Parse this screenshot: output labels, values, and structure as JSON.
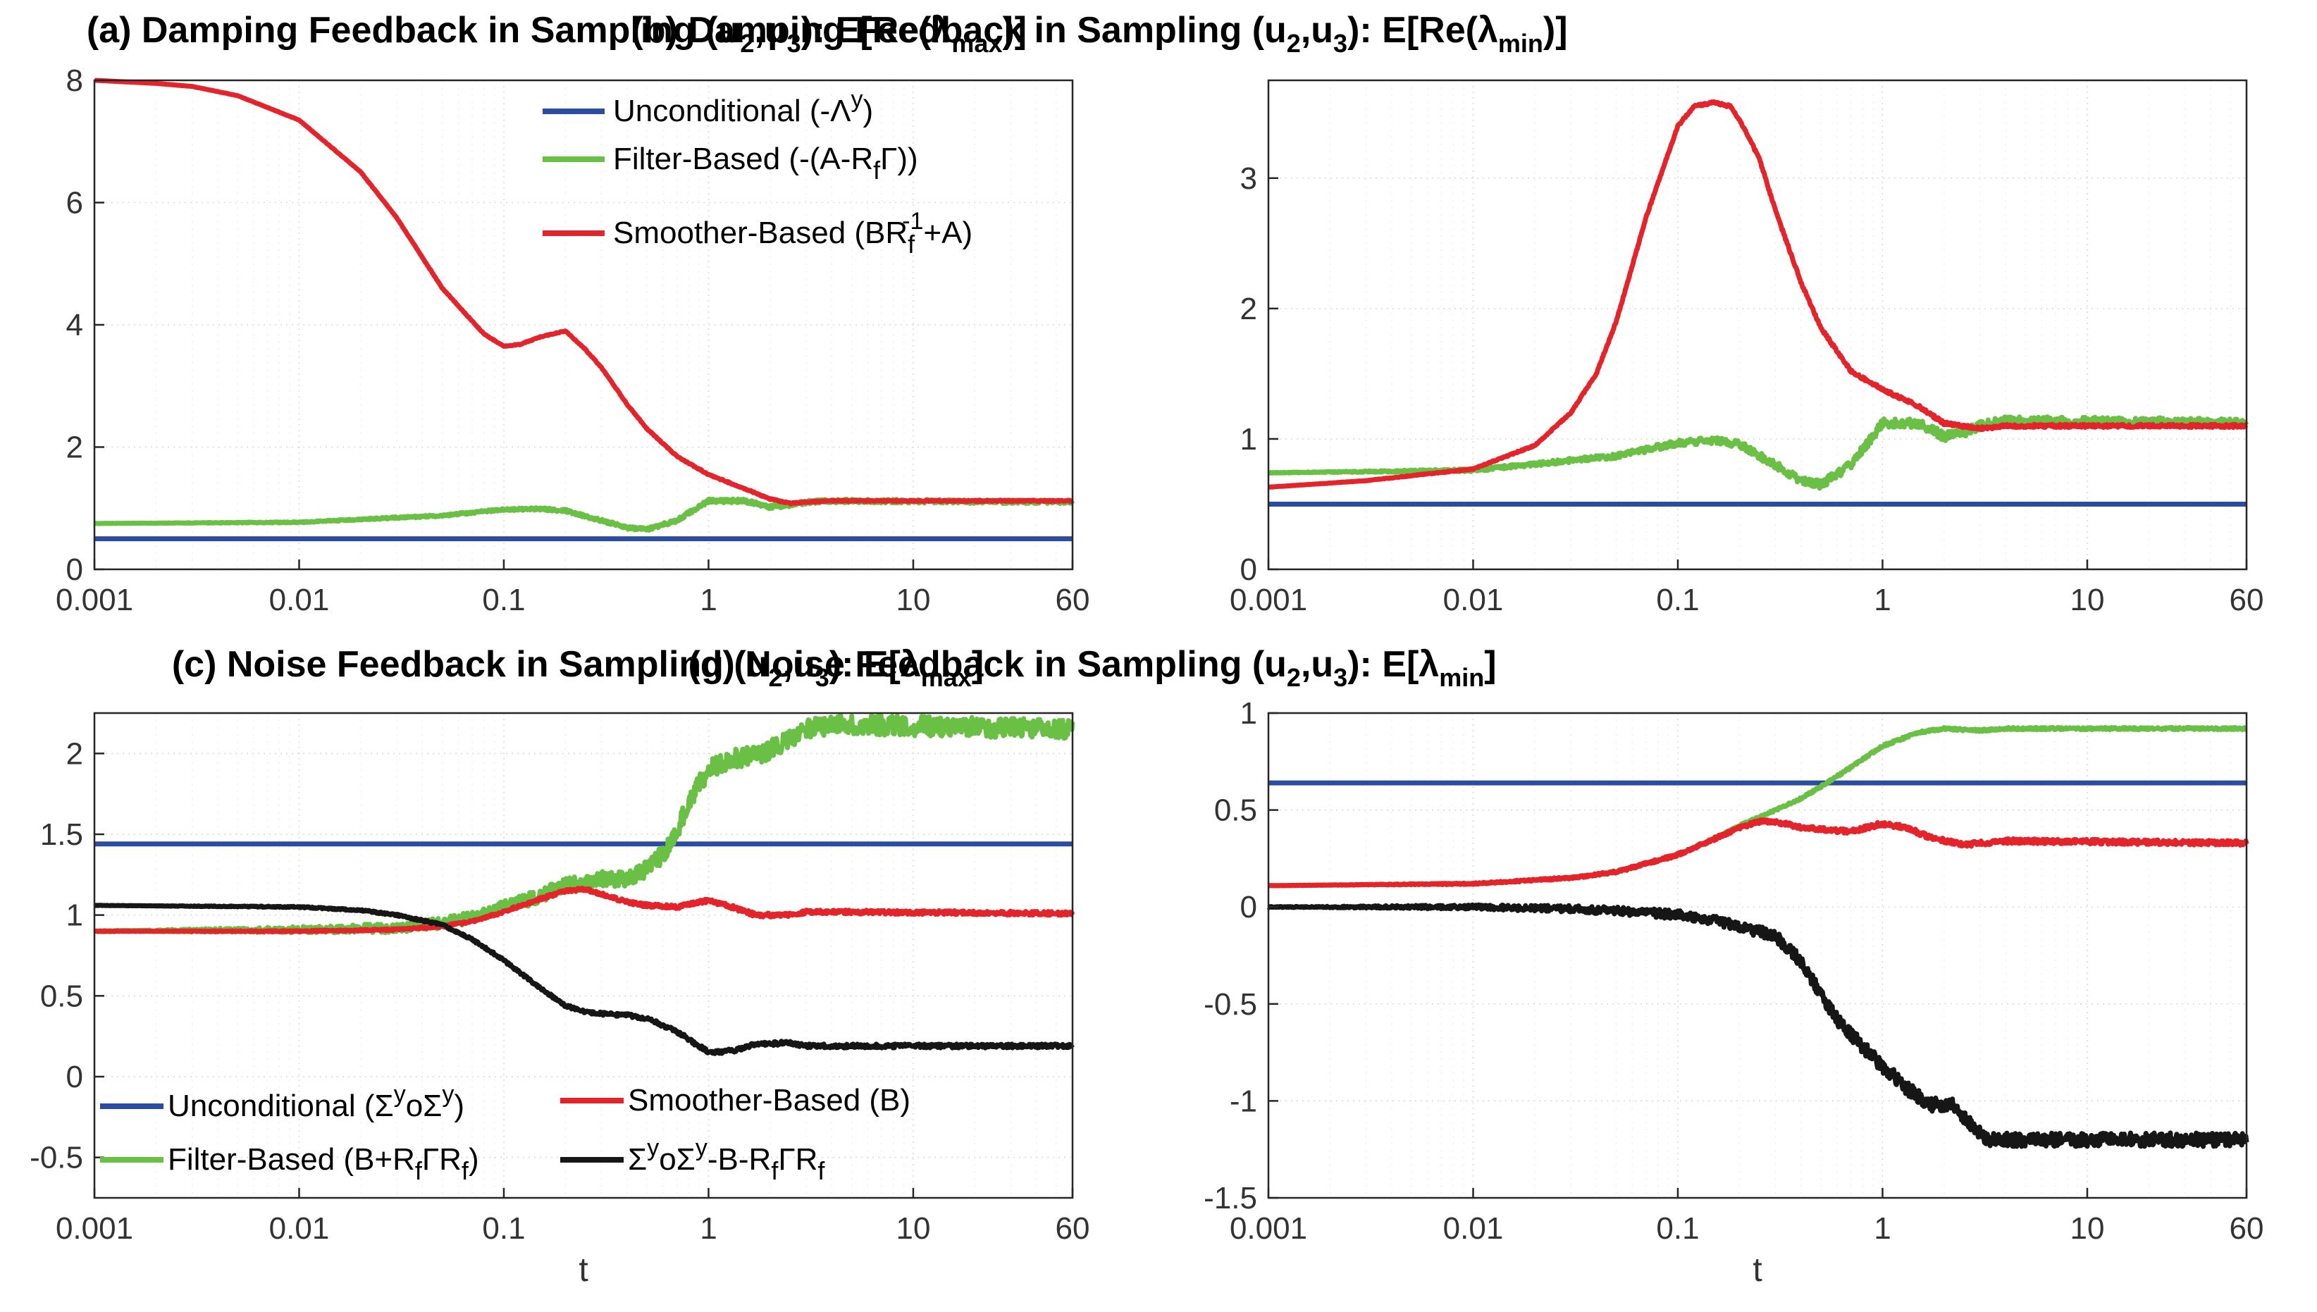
{
  "colors": {
    "blue": "#2a4da0",
    "green": "#6abf45",
    "red": "#e3242b",
    "black": "#161616"
  },
  "chart_data": [
    {
      "id": "a",
      "type": "line",
      "title_parts": [
        "(a) Damping Feedback in Sampling (u",
        "2",
        ",u",
        "3",
        "): E[Re(λ",
        "max",
        ")]"
      ],
      "xscale": "log",
      "xlim": [
        0.001,
        60
      ],
      "ylim": [
        0,
        8
      ],
      "xlabel": "",
      "xticks": [
        "0.001",
        "0.01",
        "0.1",
        "1",
        "10",
        "60"
      ],
      "yticks": [
        "0",
        "2",
        "4",
        "6",
        "8"
      ],
      "legend_position": "top-right",
      "legend_labels": [
        [
          "Unconditional (-Λ",
          "y",
          ")"
        ],
        [
          "Filter-Based (-(A-R",
          "f",
          "Γ))"
        ],
        [
          "Smoother-Based (BR",
          "f",
          "-1",
          "+A)"
        ]
      ],
      "series": [
        {
          "name": "Unconditional (-Λʸ)",
          "color": "blue",
          "noise": 0,
          "x": [
            0.001,
            60
          ],
          "y": [
            0.5,
            0.5
          ]
        },
        {
          "name": "Filter-Based (-(A-R_fΓ))",
          "color": "green",
          "noise": 0.03,
          "x": [
            0.001,
            0.01,
            0.05,
            0.1,
            0.15,
            0.2,
            0.3,
            0.4,
            0.5,
            0.7,
            1.0,
            1.5,
            2.0,
            2.5,
            3.0,
            4.0,
            60
          ],
          "y": [
            0.75,
            0.77,
            0.88,
            0.98,
            0.99,
            0.96,
            0.8,
            0.68,
            0.65,
            0.8,
            1.12,
            1.12,
            1.02,
            1.05,
            1.1,
            1.12,
            1.1
          ]
        },
        {
          "name": "Smoother-Based (BR_f⁻¹+A)",
          "color": "red",
          "noise": 0.01,
          "x": [
            0.001,
            0.002,
            0.003,
            0.005,
            0.01,
            0.02,
            0.03,
            0.05,
            0.08,
            0.1,
            0.12,
            0.15,
            0.2,
            0.25,
            0.3,
            0.4,
            0.5,
            0.7,
            1.0,
            1.5,
            2.0,
            2.5,
            3.0,
            4.0,
            60
          ],
          "y": [
            8.0,
            7.95,
            7.9,
            7.75,
            7.35,
            6.5,
            5.75,
            4.6,
            3.85,
            3.65,
            3.68,
            3.8,
            3.9,
            3.6,
            3.3,
            2.7,
            2.3,
            1.85,
            1.55,
            1.32,
            1.15,
            1.08,
            1.1,
            1.12,
            1.12
          ]
        }
      ]
    },
    {
      "id": "b",
      "type": "line",
      "title_parts": [
        "(b) Damping Feedback in Sampling (u",
        "2",
        ",u",
        "3",
        "): E[Re(λ",
        "min",
        ")]"
      ],
      "xscale": "log",
      "xlim": [
        0.001,
        60
      ],
      "ylim": [
        0,
        3.75
      ],
      "xlabel": "",
      "xticks": [
        "0.001",
        "0.01",
        "0.1",
        "1",
        "10",
        "60"
      ],
      "yticks": [
        "0",
        "1",
        "2",
        "3"
      ],
      "series": [
        {
          "name": "Unconditional",
          "color": "blue",
          "noise": 0,
          "x": [
            0.001,
            60
          ],
          "y": [
            0.5,
            0.5
          ]
        },
        {
          "name": "Filter-Based",
          "color": "green",
          "noise": 0.035,
          "x": [
            0.001,
            0.01,
            0.05,
            0.1,
            0.15,
            0.2,
            0.3,
            0.4,
            0.5,
            0.7,
            1.0,
            1.5,
            2.0,
            2.5,
            3.0,
            4.0,
            60
          ],
          "y": [
            0.74,
            0.76,
            0.87,
            0.97,
            0.99,
            0.96,
            0.8,
            0.68,
            0.65,
            0.8,
            1.12,
            1.12,
            1.02,
            1.05,
            1.1,
            1.14,
            1.12
          ]
        },
        {
          "name": "Smoother-Based",
          "color": "red",
          "noise": 0.012,
          "x": [
            0.001,
            0.003,
            0.01,
            0.02,
            0.03,
            0.04,
            0.05,
            0.07,
            0.1,
            0.12,
            0.15,
            0.18,
            0.2,
            0.25,
            0.3,
            0.4,
            0.5,
            0.7,
            1.0,
            1.5,
            2.0,
            3.0,
            4.0,
            60
          ],
          "y": [
            0.63,
            0.68,
            0.77,
            0.95,
            1.2,
            1.5,
            1.9,
            2.7,
            3.4,
            3.55,
            3.58,
            3.55,
            3.45,
            3.15,
            2.75,
            2.2,
            1.85,
            1.52,
            1.38,
            1.25,
            1.12,
            1.08,
            1.1,
            1.1
          ]
        }
      ]
    },
    {
      "id": "c",
      "type": "line",
      "title_parts": [
        "(c) Noise Feedback in Sampling (u",
        "2",
        ",u",
        "3",
        "): E[λ",
        "max",
        "]"
      ],
      "xscale": "log",
      "xlim": [
        0.001,
        60
      ],
      "ylim": [
        -0.75,
        2.25
      ],
      "xlabel": "t",
      "xticks": [
        "0.001",
        "0.01",
        "0.1",
        "1",
        "10",
        "60"
      ],
      "yticks": [
        "-0.5",
        "0",
        "0.5",
        "1",
        "1.5",
        "2"
      ],
      "legend_position": "bottom-left",
      "legend_labels": [
        [
          "Unconditional (Σ",
          "y",
          "oΣ",
          "y",
          ")"
        ],
        [
          "Smoother-Based (B)"
        ],
        [
          "Filter-Based (B+R",
          "f",
          "ΓR",
          "f",
          ")"
        ],
        [
          "Σ",
          "y",
          "oΣ",
          "y",
          "-B-R",
          "f",
          "ΓR",
          "f"
        ]
      ],
      "series": [
        {
          "name": "Unconditional (ΣʸoΣʸ)",
          "color": "blue",
          "noise": 0,
          "x": [
            0.001,
            60
          ],
          "y": [
            1.44,
            1.44
          ]
        },
        {
          "name": "Filter-Based (B+R_fΓR_f)",
          "color": "green",
          "noise": 0.06,
          "x": [
            0.001,
            0.01,
            0.03,
            0.05,
            0.08,
            0.1,
            0.15,
            0.2,
            0.3,
            0.4,
            0.5,
            0.6,
            0.7,
            0.8,
            1.0,
            1.2,
            1.5,
            2.0,
            2.5,
            3.0,
            4.0,
            60
          ],
          "y": [
            0.9,
            0.91,
            0.92,
            0.95,
            1.0,
            1.05,
            1.12,
            1.18,
            1.22,
            1.23,
            1.28,
            1.38,
            1.52,
            1.7,
            1.9,
            1.95,
            1.98,
            2.02,
            2.1,
            2.15,
            2.18,
            2.15
          ]
        },
        {
          "name": "Smoother-Based (B)",
          "color": "red",
          "noise": 0.012,
          "x": [
            0.001,
            0.01,
            0.03,
            0.05,
            0.07,
            0.1,
            0.15,
            0.2,
            0.25,
            0.3,
            0.4,
            0.5,
            0.7,
            1.0,
            1.3,
            1.7,
            2.5,
            3.0,
            4.0,
            60
          ],
          "y": [
            0.9,
            0.9,
            0.91,
            0.93,
            0.96,
            1.02,
            1.1,
            1.15,
            1.16,
            1.13,
            1.08,
            1.06,
            1.05,
            1.09,
            1.05,
            1.0,
            1.0,
            1.02,
            1.02,
            1.01
          ]
        },
        {
          "name": "ΣʸoΣʸ-B-R_fΓR_f",
          "color": "black",
          "noise": 0.012,
          "x": [
            0.001,
            0.01,
            0.02,
            0.03,
            0.05,
            0.07,
            0.1,
            0.15,
            0.2,
            0.25,
            0.3,
            0.4,
            0.5,
            0.7,
            1.0,
            1.3,
            1.7,
            2.5,
            3.0,
            4.0,
            60
          ],
          "y": [
            1.06,
            1.05,
            1.03,
            1.0,
            0.94,
            0.85,
            0.72,
            0.55,
            0.44,
            0.4,
            0.39,
            0.38,
            0.36,
            0.28,
            0.15,
            0.16,
            0.2,
            0.21,
            0.19,
            0.19,
            0.19
          ]
        }
      ]
    },
    {
      "id": "d",
      "type": "line",
      "title_parts": [
        "(d) Noise Feedback in Sampling (u",
        "2",
        ",u",
        "3",
        "): E[λ",
        "min",
        "]"
      ],
      "xscale": "log",
      "xlim": [
        0.001,
        60
      ],
      "ylim": [
        -1.5,
        1.0
      ],
      "xlabel": "t",
      "xticks": [
        "0.001",
        "0.01",
        "0.1",
        "1",
        "10",
        "60"
      ],
      "yticks": [
        "-1.5",
        "-1",
        "-0.5",
        "0",
        "0.5",
        "1"
      ],
      "series": [
        {
          "name": "Unconditional",
          "color": "blue",
          "noise": 0,
          "x": [
            0.001,
            60
          ],
          "y": [
            0.64,
            0.64
          ]
        },
        {
          "name": "Filter-Based",
          "color": "green",
          "noise": 0.006,
          "x": [
            0.001,
            0.01,
            0.03,
            0.05,
            0.1,
            0.15,
            0.2,
            0.3,
            0.4,
            0.5,
            0.7,
            1.0,
            1.5,
            2.0,
            3.0,
            4.0,
            60
          ],
          "y": [
            0.11,
            0.12,
            0.15,
            0.18,
            0.27,
            0.35,
            0.42,
            0.5,
            0.56,
            0.62,
            0.72,
            0.83,
            0.9,
            0.92,
            0.91,
            0.92,
            0.92
          ]
        },
        {
          "name": "Smoother-Based",
          "color": "red",
          "noise": 0.012,
          "x": [
            0.001,
            0.01,
            0.03,
            0.05,
            0.1,
            0.15,
            0.2,
            0.25,
            0.3,
            0.4,
            0.5,
            0.7,
            1.0,
            1.3,
            1.7,
            2.5,
            3.0,
            4.0,
            60
          ],
          "y": [
            0.11,
            0.12,
            0.15,
            0.18,
            0.27,
            0.35,
            0.41,
            0.44,
            0.44,
            0.41,
            0.4,
            0.39,
            0.43,
            0.41,
            0.36,
            0.32,
            0.33,
            0.34,
            0.33
          ]
        },
        {
          "name": "ΣʸoΣʸ-B-R_fΓR_f",
          "color": "black",
          "noise": 0.035,
          "x": [
            0.001,
            0.01,
            0.03,
            0.05,
            0.1,
            0.15,
            0.2,
            0.3,
            0.4,
            0.5,
            0.6,
            0.8,
            1.0,
            1.3,
            1.7,
            2.2,
            2.7,
            3.2,
            4.0,
            60
          ],
          "y": [
            0.0,
            0.0,
            -0.01,
            -0.02,
            -0.04,
            -0.07,
            -0.1,
            -0.15,
            -0.28,
            -0.45,
            -0.58,
            -0.72,
            -0.82,
            -0.93,
            -1.02,
            -1.02,
            -1.12,
            -1.2,
            -1.2,
            -1.2
          ]
        }
      ]
    }
  ]
}
